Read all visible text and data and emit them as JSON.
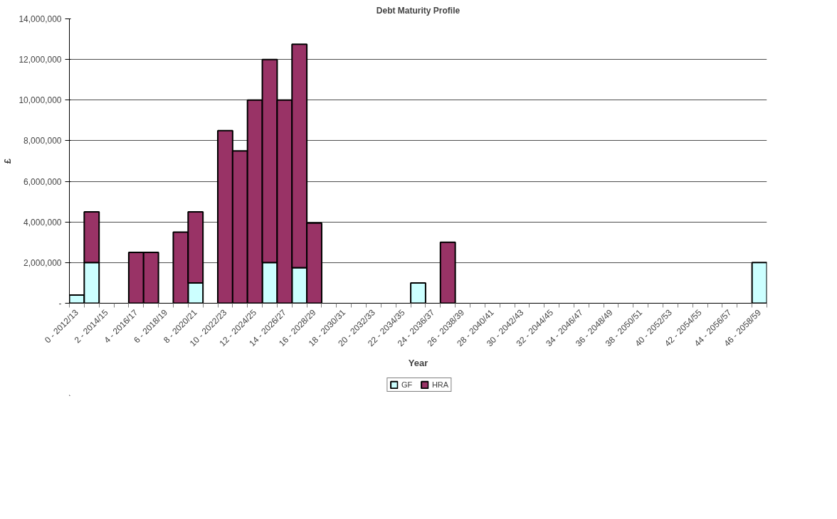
{
  "chart_data": {
    "type": "bar",
    "stacked": true,
    "title": "Debt Maturity Profile",
    "xlabel": "Year",
    "ylabel": "£",
    "categories": [
      "0 - 2012/13",
      null,
      "2 - 2014/15",
      null,
      "4 - 2016/17",
      null,
      "6 - 2018/19",
      null,
      "8 - 2020/21",
      null,
      "10 - 2022/23",
      null,
      "12 - 2024/25",
      null,
      "14 - 2026/27",
      null,
      "16 - 2028/29",
      null,
      "18 - 2030/31",
      null,
      "20 - 2032/33",
      null,
      "22 - 2034/35",
      null,
      "24 - 2036/37",
      null,
      "26 - 2038/39",
      null,
      "28 - 2040/41",
      null,
      "30 - 2042/43",
      null,
      "32 - 2044/45",
      null,
      "34 - 2046/47",
      null,
      "36 - 2048/49",
      null,
      "38 - 2050/51",
      null,
      "40 - 2052/53",
      null,
      "42 - 2054/55",
      null,
      "44 - 2056/57",
      null,
      "46 - 2058/59"
    ],
    "series": [
      {
        "name": "GF",
        "color": "#ccffff",
        "values": [
          400000,
          2000000,
          null,
          null,
          null,
          null,
          null,
          null,
          1000000,
          null,
          null,
          null,
          null,
          2000000,
          null,
          1750000,
          null,
          null,
          null,
          null,
          null,
          null,
          null,
          1000000,
          null,
          null,
          null,
          null,
          null,
          null,
          null,
          null,
          null,
          null,
          null,
          null,
          null,
          null,
          null,
          null,
          null,
          null,
          null,
          null,
          null,
          null,
          2000000
        ]
      },
      {
        "name": "HRA",
        "color": "#993366",
        "values": [
          null,
          2500000,
          null,
          null,
          2500000,
          2500000,
          null,
          3500000,
          3500000,
          null,
          8500000,
          7500000,
          10000000,
          10000000,
          10000000,
          11000000,
          3950000,
          null,
          null,
          null,
          null,
          null,
          null,
          null,
          null,
          3000000,
          null,
          null,
          null,
          null,
          null,
          null,
          null,
          null,
          null,
          null,
          null,
          null,
          null,
          null,
          null,
          null,
          null,
          null,
          null,
          null,
          null
        ]
      }
    ],
    "ylim": [
      0,
      14000000
    ],
    "yticks": [
      {
        "value": 0,
        "label": "-"
      },
      {
        "value": 2000000,
        "label": "2,000,000"
      },
      {
        "value": 4000000,
        "label": "4,000,000"
      },
      {
        "value": 6000000,
        "label": "6,000,000"
      },
      {
        "value": 8000000,
        "label": "8,000,000"
      },
      {
        "value": 10000000,
        "label": "10,000,000"
      },
      {
        "value": 12000000,
        "label": "12,000,000"
      },
      {
        "value": 14000000,
        "label": "14,000,000"
      }
    ],
    "grid": "y",
    "legend": "bottom"
  }
}
